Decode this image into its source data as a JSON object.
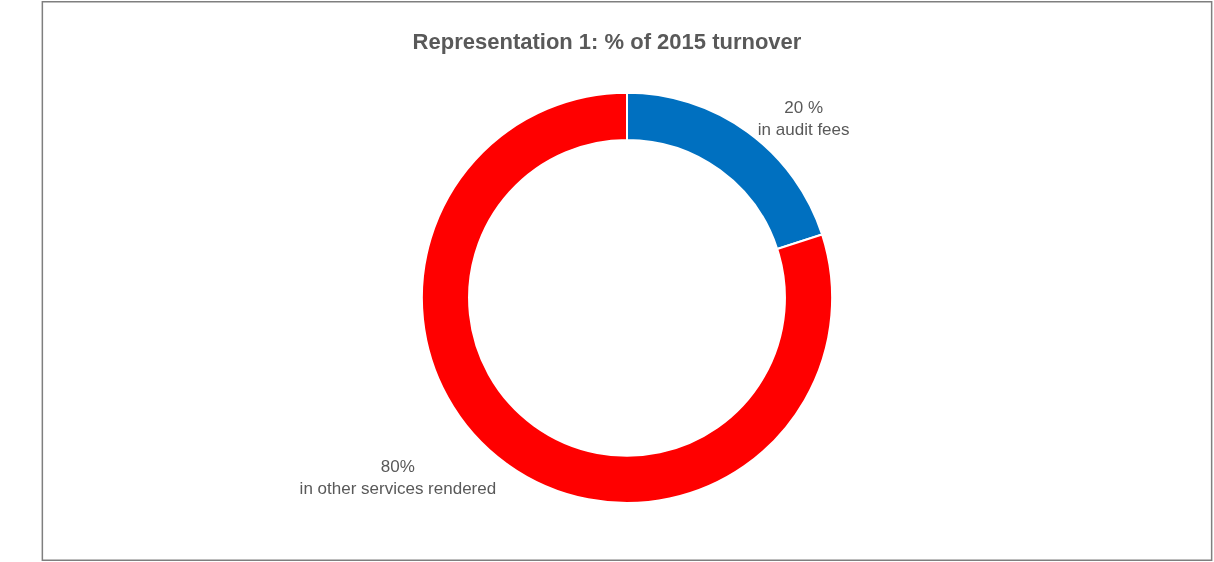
{
  "chart_data": {
    "type": "donut",
    "title": "Representation 1: % of 2015 turnover",
    "categories": [
      "in audit fees",
      "in other services rendered"
    ],
    "values": [
      20,
      80
    ],
    "value_labels": [
      "20 %",
      "80%"
    ],
    "colors": [
      "#0070c0",
      "#ff0000"
    ],
    "legend": false
  }
}
